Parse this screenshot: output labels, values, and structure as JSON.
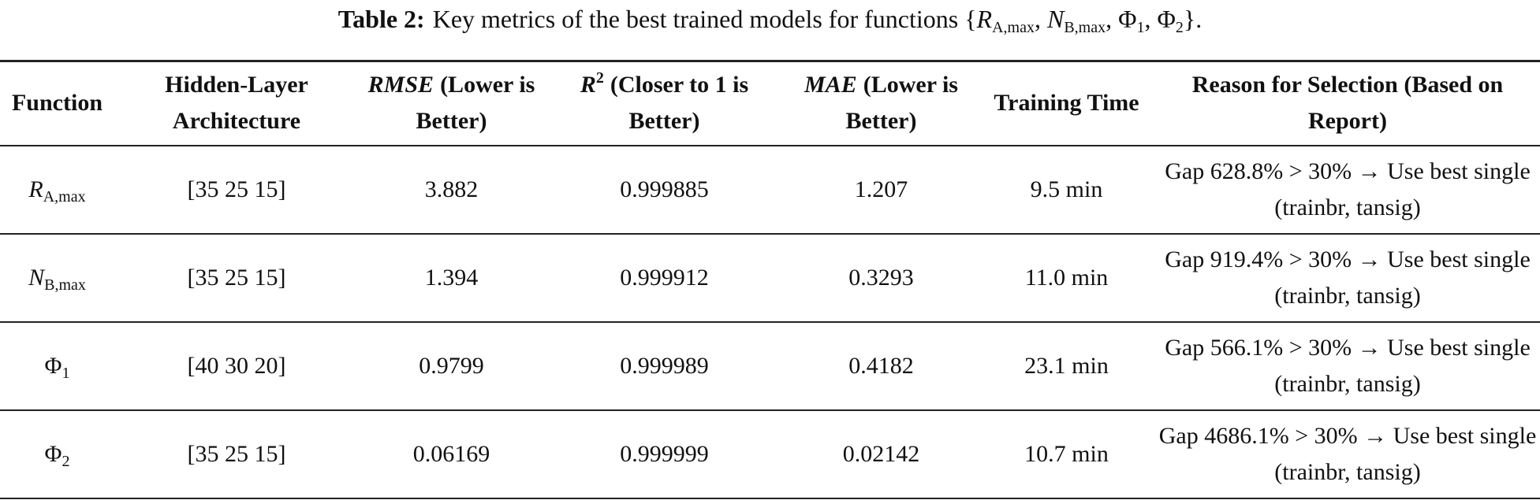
{
  "caption": {
    "label": "Table 2:",
    "text": "Key metrics of the best trained models for functions",
    "open": "{",
    "separator": ",",
    "close": "}.",
    "items": [
      {
        "main": "R",
        "italic": true,
        "sub": "A,max"
      },
      {
        "main": "N",
        "italic": true,
        "sub": "B,max"
      },
      {
        "main": "Φ",
        "italic": false,
        "sub": "1"
      },
      {
        "main": "Φ",
        "italic": false,
        "sub": "2"
      }
    ]
  },
  "table": {
    "header": [
      [
        {
          "text": "Function"
        }
      ],
      [
        {
          "text": "Hidden-Layer Architecture"
        }
      ],
      [
        {
          "text": "RMSE",
          "italic": true
        },
        {
          "text": "(Lower is Better)"
        }
      ],
      [
        {
          "text": "R",
          "italic": true,
          "sup": "2"
        },
        {
          "text": "(Closer to 1 is Better)"
        }
      ],
      [
        {
          "text": "MAE",
          "italic": true
        },
        {
          "text": "(Lower is Better)"
        }
      ],
      [
        {
          "text": "Training Time"
        }
      ],
      [
        {
          "text": "Reason for Selection (Based on Report)"
        }
      ]
    ],
    "rows": [
      [
        {
          "main": "R",
          "italic": true,
          "sub": "A,max"
        },
        "[35 25 15]",
        "3.882",
        "0.999885",
        "1.207",
        "9.5 min",
        "Gap 628.8% > 30% → Use best single (trainbr, tansig)"
      ],
      [
        {
          "main": "N",
          "italic": true,
          "sub": "B,max"
        },
        "[35 25 15]",
        "1.394",
        "0.999912",
        "0.3293",
        "11.0 min",
        "Gap 919.4% > 30% → Use best single (trainbr, tansig)"
      ],
      [
        {
          "main": "Φ",
          "italic": false,
          "sub": "1"
        },
        "[40 30 20]",
        "0.9799",
        "0.999989",
        "0.4182",
        "23.1 min",
        "Gap 566.1% > 30% → Use best single (trainbr, tansig)"
      ],
      [
        {
          "main": "Φ",
          "italic": false,
          "sub": "2"
        },
        "[35 25 15]",
        "0.06169",
        "0.999999",
        "0.02142",
        "10.7 min",
        "Gap 4686.1% > 30% → Use best single (trainbr, tansig)"
      ]
    ]
  }
}
